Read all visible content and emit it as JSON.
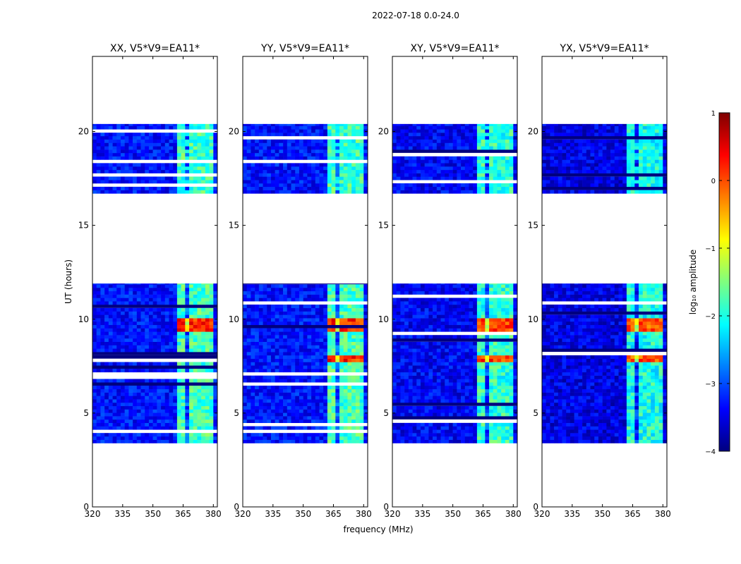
{
  "figure": {
    "suptitle": "2022-07-18 0.0-24.0"
  },
  "colorbar": {
    "label": "log₁₀ amplitude",
    "ticks": [
      1,
      0,
      -1,
      -2,
      -3,
      -4
    ],
    "tick_labels": [
      "1",
      "0",
      "−1",
      "−2",
      "−3",
      "−4"
    ],
    "vmin": -4,
    "vmax": 1,
    "colormap": "jet",
    "colors": [
      "#00007f",
      "#0000ff",
      "#007fff",
      "#00ffff",
      "#7fff7f",
      "#ffff00",
      "#ff7f00",
      "#ff0000",
      "#7f0000"
    ]
  },
  "chart_data": [
    {
      "type": "heatmap",
      "title": "XX, V5*V9=EA11*",
      "xlabel": "",
      "ylabel": "UT (hours)",
      "xlim": [
        320,
        382
      ],
      "ylim": [
        0,
        24
      ],
      "xticks": [
        320,
        335,
        350,
        365,
        380
      ],
      "xtick_labels": [
        "320",
        "335",
        "350",
        "365",
        "380"
      ],
      "yticks": [
        0,
        5,
        10,
        15,
        20
      ],
      "ytick_labels": [
        "0",
        "5",
        "10",
        "15",
        "20"
      ],
      "data_hours": [
        [
          3.4,
          11.9
        ],
        [
          16.7,
          20.4
        ]
      ],
      "rfi_band_mhz": [
        362,
        380
      ],
      "hot_hours": [
        [
          9.2,
          10.0
        ],
        [
          7.7,
          8.0
        ]
      ],
      "level_background": -3.3,
      "level_rfi": -1.8,
      "level_hot": 0.2
    },
    {
      "type": "heatmap",
      "title": "YY, V5*V9=EA11*",
      "xlabel": "frequency (MHz)",
      "ylabel": "",
      "xlim": [
        320,
        382
      ],
      "ylim": [
        0,
        24
      ],
      "xticks": [
        320,
        335,
        350,
        365,
        380
      ],
      "xtick_labels": [
        "320",
        "335",
        "350",
        "365",
        "380"
      ],
      "yticks": [
        0,
        5,
        10,
        15,
        20
      ],
      "ytick_labels": [
        "0",
        "5",
        "10",
        "15",
        "20"
      ],
      "data_hours": [
        [
          3.4,
          11.9
        ],
        [
          16.7,
          20.4
        ]
      ],
      "rfi_band_mhz": [
        362,
        380
      ],
      "hot_hours": [
        [
          9.2,
          10.0
        ],
        [
          7.7,
          8.0
        ]
      ],
      "level_background": -3.3,
      "level_rfi": -1.8,
      "level_hot": 0.2
    },
    {
      "type": "heatmap",
      "title": "XY, V5*V9=EA11*",
      "xlabel": "",
      "ylabel": "",
      "xlim": [
        320,
        382
      ],
      "ylim": [
        0,
        24
      ],
      "xticks": [
        320,
        335,
        350,
        365,
        380
      ],
      "xtick_labels": [
        "320",
        "335",
        "350",
        "365",
        "380"
      ],
      "yticks": [
        0,
        5,
        10,
        15,
        20
      ],
      "ytick_labels": [
        "0",
        "5",
        "10",
        "15",
        "20"
      ],
      "data_hours": [
        [
          3.4,
          11.9
        ],
        [
          16.7,
          20.4
        ]
      ],
      "rfi_band_mhz": [
        362,
        380
      ],
      "hot_hours": [
        [
          9.2,
          10.0
        ],
        [
          7.7,
          8.0
        ]
      ],
      "level_background": -3.4,
      "level_rfi": -1.9,
      "level_hot": 0.1
    },
    {
      "type": "heatmap",
      "title": "YX, V5*V9=EA11*",
      "xlabel": "",
      "ylabel": "",
      "xlim": [
        320,
        382
      ],
      "ylim": [
        0,
        24
      ],
      "xticks": [
        320,
        335,
        350,
        365,
        380
      ],
      "xtick_labels": [
        "320",
        "335",
        "350",
        "365",
        "380"
      ],
      "yticks": [
        0,
        5,
        10,
        15,
        20
      ],
      "ytick_labels": [
        "0",
        "5",
        "10",
        "15",
        "20"
      ],
      "data_hours": [
        [
          3.4,
          11.9
        ],
        [
          16.7,
          20.4
        ]
      ],
      "rfi_band_mhz": [
        362,
        380
      ],
      "hot_hours": [
        [
          9.2,
          10.0
        ],
        [
          7.7,
          8.0
        ]
      ],
      "level_background": -3.5,
      "level_rfi": -2.0,
      "level_hot": 0.0
    }
  ]
}
